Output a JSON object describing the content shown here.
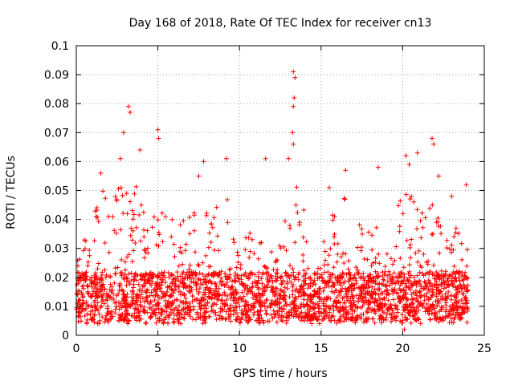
{
  "chart_data": {
    "type": "scatter",
    "title": "Day 168 of 2018, Rate Of TEC Index for receiver cn13",
    "xlabel": "GPS time / hours",
    "ylabel": "ROTI / TECUs",
    "xlim": [
      0,
      25
    ],
    "ylim": [
      0,
      0.1
    ],
    "x_ticks": [
      0,
      5,
      10,
      15,
      20,
      25
    ],
    "y_ticks": [
      0,
      0.01,
      0.02,
      0.03,
      0.04,
      0.05,
      0.06,
      0.07,
      0.08,
      0.09,
      0.1
    ],
    "x_tick_labels": [
      "0",
      "5",
      "10",
      "15",
      "20",
      "25"
    ],
    "y_tick_labels": [
      "0",
      "0.01",
      "0.02",
      "0.03",
      "0.04",
      "0.05",
      "0.06",
      "0.07",
      "0.08",
      "0.09",
      "0.1"
    ],
    "grid": true,
    "marker": "+",
    "series": [
      {
        "name": "ROTI",
        "color": "#ff0000",
        "x_range": [
          0,
          24
        ],
        "typical_range": [
          0.004,
          0.03
        ],
        "notable_points": [
          {
            "x": 0.1,
            "y": 0.024
          },
          {
            "x": 1.5,
            "y": 0.056
          },
          {
            "x": 2.7,
            "y": 0.061
          },
          {
            "x": 2.9,
            "y": 0.07
          },
          {
            "x": 3.2,
            "y": 0.079
          },
          {
            "x": 3.3,
            "y": 0.077
          },
          {
            "x": 3.9,
            "y": 0.064
          },
          {
            "x": 5.0,
            "y": 0.071
          },
          {
            "x": 5.05,
            "y": 0.068
          },
          {
            "x": 7.5,
            "y": 0.055
          },
          {
            "x": 7.8,
            "y": 0.06
          },
          {
            "x": 9.2,
            "y": 0.061
          },
          {
            "x": 11.6,
            "y": 0.061
          },
          {
            "x": 13.0,
            "y": 0.061
          },
          {
            "x": 13.3,
            "y": 0.091
          },
          {
            "x": 13.4,
            "y": 0.089
          },
          {
            "x": 13.35,
            "y": 0.082
          },
          {
            "x": 13.3,
            "y": 0.079
          },
          {
            "x": 13.25,
            "y": 0.07
          },
          {
            "x": 13.3,
            "y": 0.066
          },
          {
            "x": 15.5,
            "y": 0.051
          },
          {
            "x": 16.5,
            "y": 0.057
          },
          {
            "x": 18.5,
            "y": 0.058
          },
          {
            "x": 20.2,
            "y": 0.062
          },
          {
            "x": 20.4,
            "y": 0.059
          },
          {
            "x": 20.9,
            "y": 0.063
          },
          {
            "x": 21.8,
            "y": 0.068
          },
          {
            "x": 21.9,
            "y": 0.066
          },
          {
            "x": 22.2,
            "y": 0.055
          },
          {
            "x": 23.0,
            "y": 0.048
          },
          {
            "x": 23.9,
            "y": 0.052
          },
          {
            "x": 20.1,
            "y": 0.002
          }
        ]
      }
    ]
  }
}
